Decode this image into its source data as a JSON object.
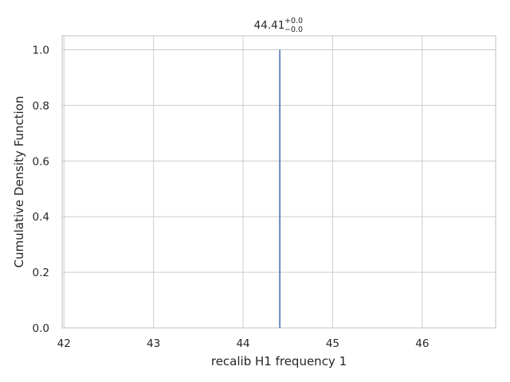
{
  "chart_data": {
    "type": "line",
    "title_value": "44.41",
    "title_upper": "+0.0",
    "title_lower": "−0.0",
    "xlabel": "recalib H1 frequency 1",
    "ylabel": "Cumulative Density Function",
    "xlim": [
      41.98,
      46.82
    ],
    "ylim": [
      0.0,
      1.05
    ],
    "x_ticks": [
      42,
      43,
      44,
      45,
      46
    ],
    "x_tick_labels": [
      "42",
      "43",
      "44",
      "45",
      "46"
    ],
    "y_ticks": [
      0.0,
      0.2,
      0.4,
      0.6,
      0.8,
      1.0
    ],
    "y_tick_labels": [
      "0.0",
      "0.2",
      "0.4",
      "0.6",
      "0.8",
      "1.0"
    ],
    "grid": true,
    "series": [
      {
        "x": [
          44.41,
          44.41
        ],
        "y": [
          0.0,
          1.0
        ],
        "color": "#4c72b0"
      }
    ]
  }
}
